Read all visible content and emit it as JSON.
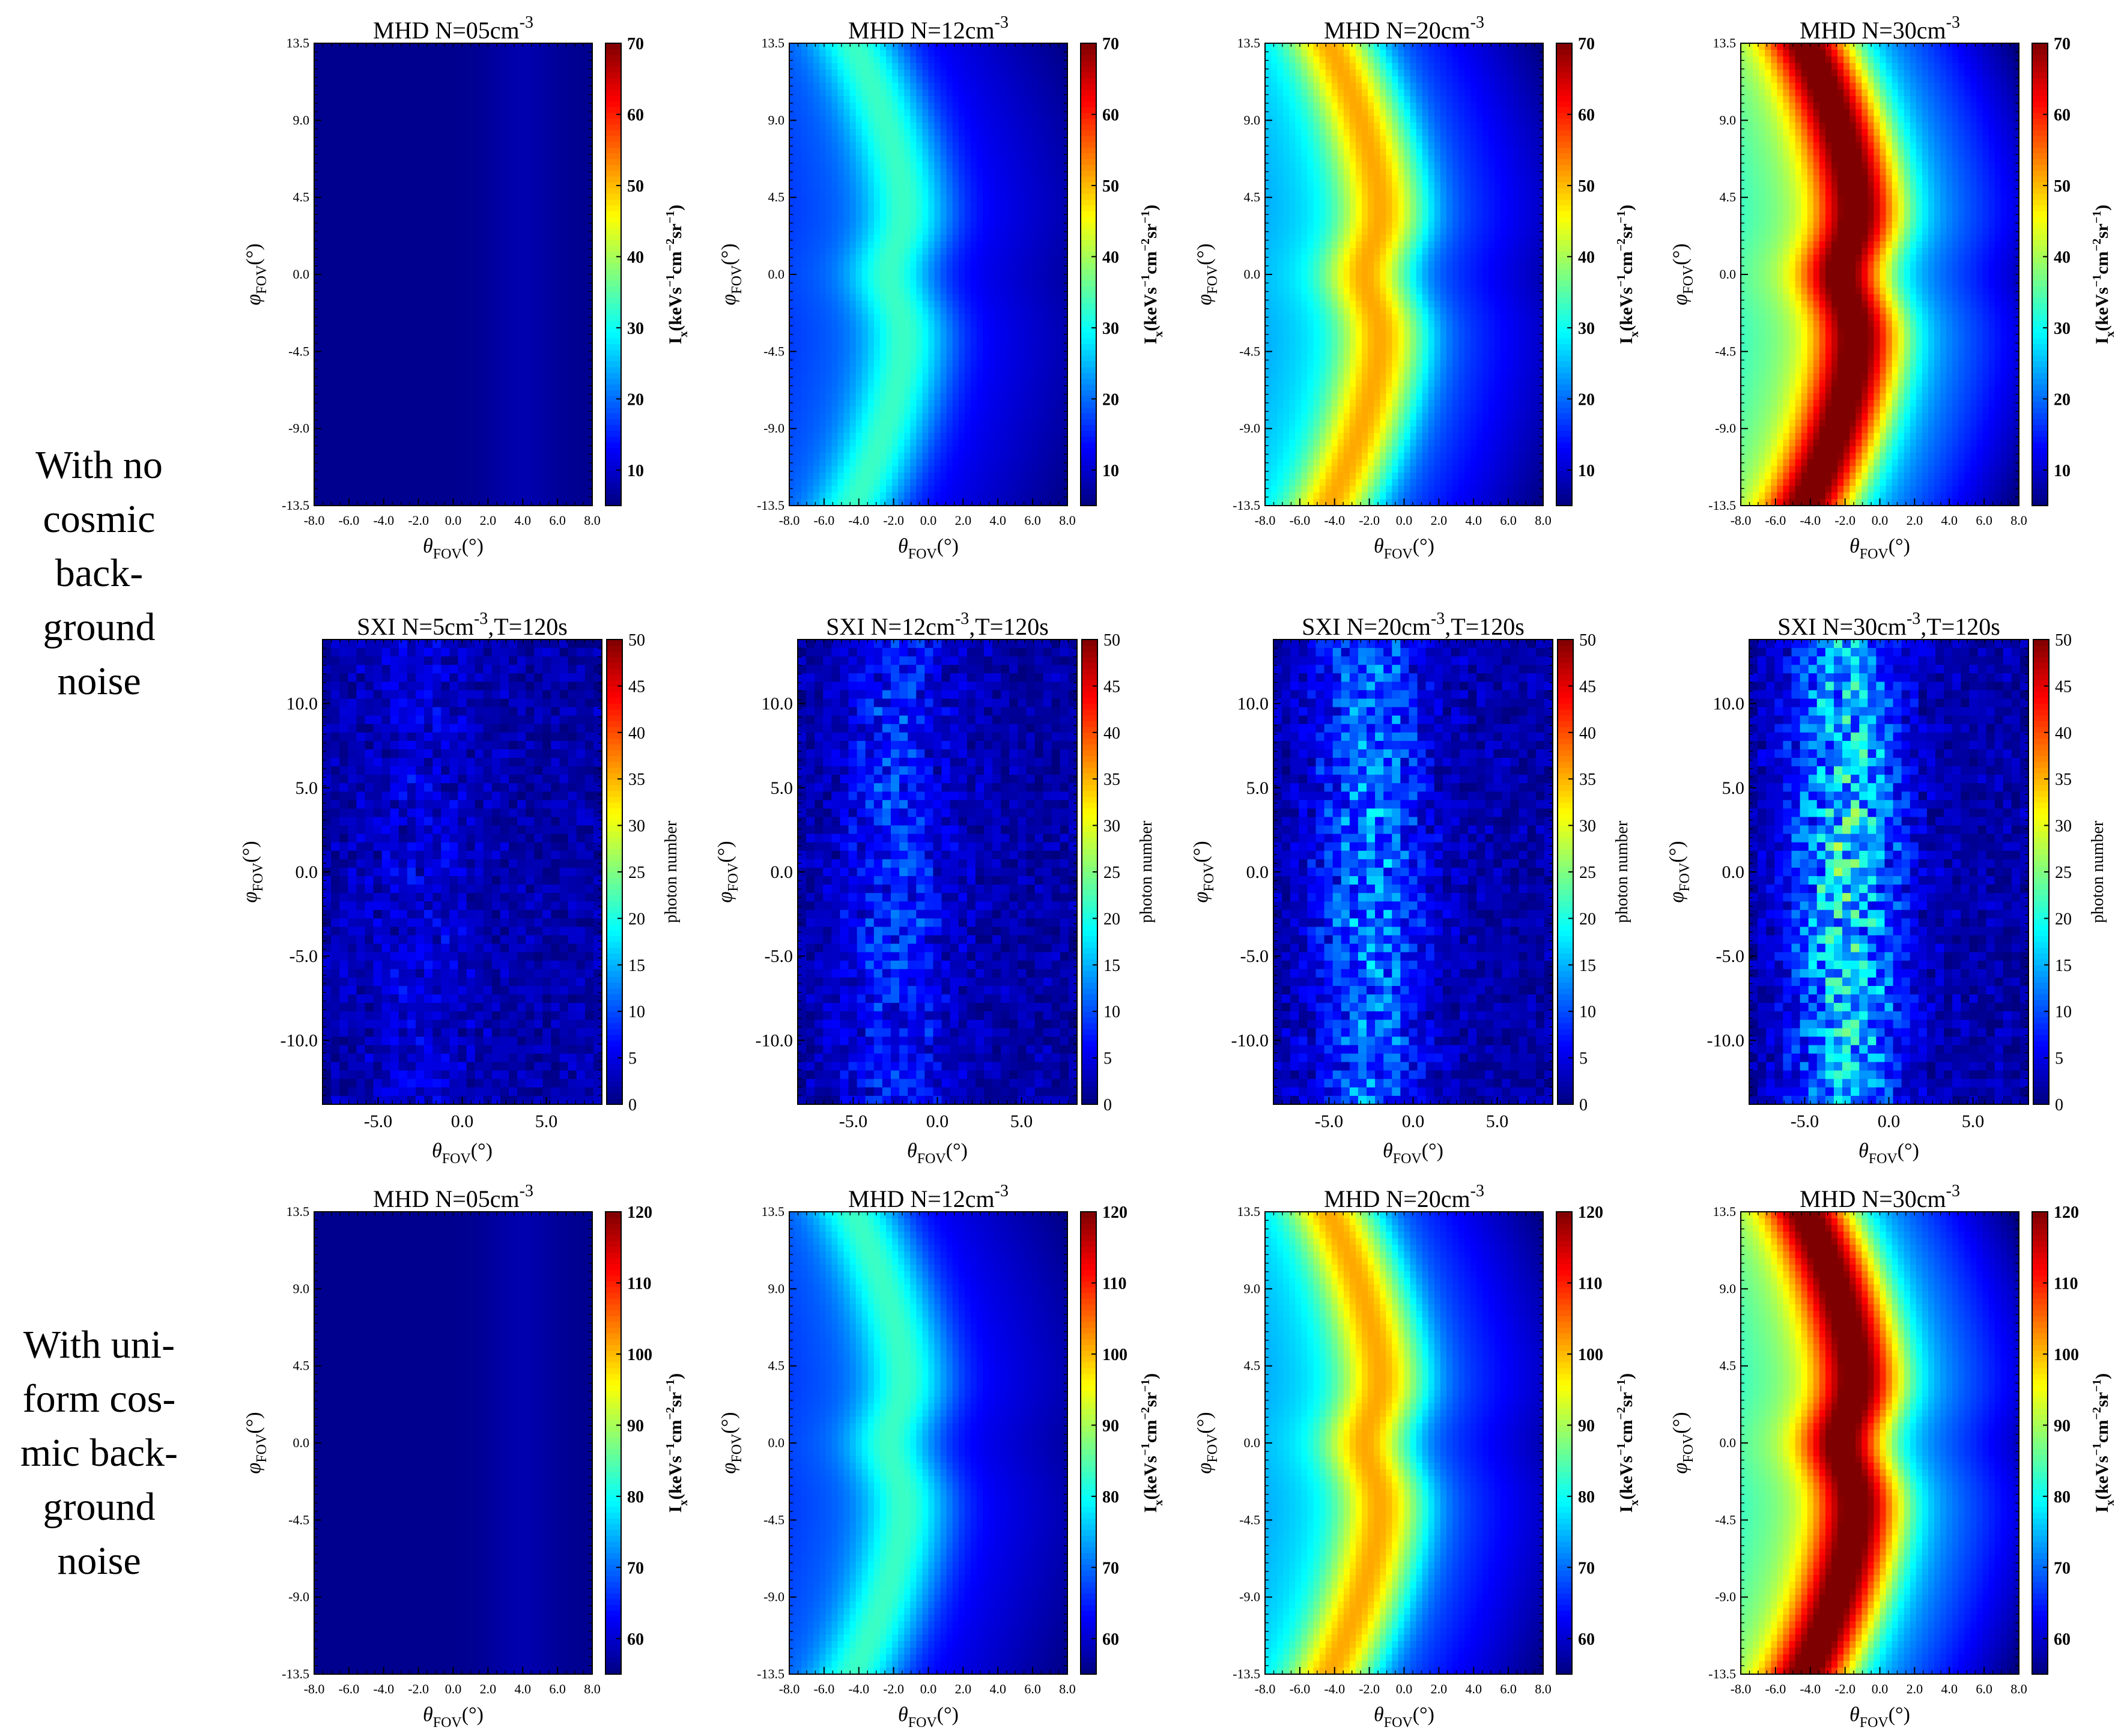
{
  "row_labels": [
    [
      "With no",
      "cosmic",
      "back-",
      "ground",
      "noise"
    ],
    [
      "With uni-",
      "form cos-",
      "mic back-",
      "ground",
      "noise"
    ]
  ],
  "colormap": [
    "#00007f",
    "#0000ff",
    "#007fff",
    "#00ffff",
    "#7fff7f",
    "#ffff00",
    "#ff7f00",
    "#ff0000",
    "#7f0000"
  ],
  "chart_data": [
    {
      "type": "heatmap",
      "title_main": "MHD  N=05cm",
      "title_sup": "-3",
      "title_tail": "",
      "xlabel_sym": "θ",
      "ylabel_sym": "φ",
      "axis_sub": "FOV",
      "axis_unit": "(°)",
      "cbar_label": "I",
      "cbar_sub": "x",
      "cbar_unit_a": "(keVs",
      "cbar_sup_a": "−1",
      "cbar_unit_b": "cm",
      "cbar_sup_b": "−2",
      "cbar_unit_c": "sr",
      "cbar_sup_c": "−1",
      "cbar_unit_d": ")",
      "xlim": [
        -8,
        8
      ],
      "ylim": [
        -13.5,
        13.5
      ],
      "xticks": [
        "-8.0",
        "-6.0",
        "-4.0",
        "-2.0",
        "0.0",
        "2.0",
        "4.0",
        "6.0",
        "8.0"
      ],
      "yticks": [
        "-13.5",
        "-9.0",
        "-4.5",
        "0.0",
        "4.5",
        "9.0",
        "13.5"
      ],
      "clim": [
        5,
        70
      ],
      "cticks": [
        "10",
        "20",
        "30",
        "40",
        "50",
        "60",
        "70"
      ],
      "model": {
        "density": 5,
        "kind": "smooth"
      }
    },
    {
      "type": "heatmap",
      "title_main": "MHD  N=12cm",
      "title_sup": "-3",
      "title_tail": "",
      "xlabel_sym": "θ",
      "ylabel_sym": "φ",
      "axis_sub": "FOV",
      "axis_unit": "(°)",
      "cbar_label": "I",
      "cbar_sub": "x",
      "cbar_unit_a": "(keVs",
      "cbar_sup_a": "−1",
      "cbar_unit_b": "cm",
      "cbar_sup_b": "−2",
      "cbar_unit_c": "sr",
      "cbar_sup_c": "−1",
      "cbar_unit_d": ")",
      "xlim": [
        -8,
        8
      ],
      "ylim": [
        -13.5,
        13.5
      ],
      "xticks": [
        "-8.0",
        "-6.0",
        "-4.0",
        "-2.0",
        "0.0",
        "2.0",
        "4.0",
        "6.0",
        "8.0"
      ],
      "yticks": [
        "-13.5",
        "-9.0",
        "-4.5",
        "0.0",
        "4.5",
        "9.0",
        "13.5"
      ],
      "clim": [
        5,
        70
      ],
      "cticks": [
        "10",
        "20",
        "30",
        "40",
        "50",
        "60",
        "70"
      ],
      "model": {
        "density": 12,
        "kind": "smooth"
      }
    },
    {
      "type": "heatmap",
      "title_main": "MHD  N=20cm",
      "title_sup": "-3",
      "title_tail": "",
      "xlabel_sym": "θ",
      "ylabel_sym": "φ",
      "axis_sub": "FOV",
      "axis_unit": "(°)",
      "cbar_label": "I",
      "cbar_sub": "x",
      "cbar_unit_a": "(keVs",
      "cbar_sup_a": "−1",
      "cbar_unit_b": "cm",
      "cbar_sup_b": "−2",
      "cbar_unit_c": "sr",
      "cbar_sup_c": "−1",
      "cbar_unit_d": ")",
      "xlim": [
        -8,
        8
      ],
      "ylim": [
        -13.5,
        13.5
      ],
      "xticks": [
        "-8.0",
        "-6.0",
        "-4.0",
        "-2.0",
        "0.0",
        "2.0",
        "4.0",
        "6.0",
        "8.0"
      ],
      "yticks": [
        "-13.5",
        "-9.0",
        "-4.5",
        "0.0",
        "4.5",
        "9.0",
        "13.5"
      ],
      "clim": [
        5,
        70
      ],
      "cticks": [
        "10",
        "20",
        "30",
        "40",
        "50",
        "60",
        "70"
      ],
      "model": {
        "density": 20,
        "kind": "smooth"
      }
    },
    {
      "type": "heatmap",
      "title_main": "MHD  N=30cm",
      "title_sup": "-3",
      "title_tail": "",
      "xlabel_sym": "θ",
      "ylabel_sym": "φ",
      "axis_sub": "FOV",
      "axis_unit": "(°)",
      "cbar_label": "I",
      "cbar_sub": "x",
      "cbar_unit_a": "(keVs",
      "cbar_sup_a": "−1",
      "cbar_unit_b": "cm",
      "cbar_sup_b": "−2",
      "cbar_unit_c": "sr",
      "cbar_sup_c": "−1",
      "cbar_unit_d": ")",
      "xlim": [
        -8,
        8
      ],
      "ylim": [
        -13.5,
        13.5
      ],
      "xticks": [
        "-8.0",
        "-6.0",
        "-4.0",
        "-2.0",
        "0.0",
        "2.0",
        "4.0",
        "6.0",
        "8.0"
      ],
      "yticks": [
        "-13.5",
        "-9.0",
        "-4.5",
        "0.0",
        "4.5",
        "9.0",
        "13.5"
      ],
      "clim": [
        5,
        70
      ],
      "cticks": [
        "10",
        "20",
        "30",
        "40",
        "50",
        "60",
        "70"
      ],
      "model": {
        "density": 30,
        "kind": "smooth"
      }
    },
    {
      "type": "heatmap",
      "title_main": "SXI   N=5cm",
      "title_sup": "-3",
      "title_tail": ",T=120s",
      "xlabel_sym": "θ",
      "ylabel_sym": "φ",
      "axis_sub": "FOV",
      "axis_unit": "(°)",
      "cbar_label": "photon number",
      "xlim": [
        -8.3,
        8.3
      ],
      "ylim": [
        -13.8,
        13.8
      ],
      "xticks": [
        "-5.0",
        "0.0",
        "5.0"
      ],
      "xtick_values": [
        -5,
        0,
        5
      ],
      "yticks": [
        "-10.0",
        "-5.0",
        "0.0",
        "5.0",
        "10.0"
      ],
      "ytick_values": [
        -10,
        -5,
        0,
        5,
        10
      ],
      "clim": [
        0,
        50
      ],
      "cticks": [
        "0",
        "5",
        "10",
        "15",
        "20",
        "25",
        "30",
        "35",
        "40",
        "45",
        "50"
      ],
      "model": {
        "density": 5,
        "kind": "counts"
      }
    },
    {
      "type": "heatmap",
      "title_main": "SXI   N=12cm",
      "title_sup": "-3",
      "title_tail": ",T=120s",
      "xlabel_sym": "θ",
      "ylabel_sym": "φ",
      "axis_sub": "FOV",
      "axis_unit": "(°)",
      "cbar_label": "photon number",
      "xlim": [
        -8.3,
        8.3
      ],
      "ylim": [
        -13.8,
        13.8
      ],
      "xticks": [
        "-5.0",
        "0.0",
        "5.0"
      ],
      "xtick_values": [
        -5,
        0,
        5
      ],
      "yticks": [
        "-10.0",
        "-5.0",
        "0.0",
        "5.0",
        "10.0"
      ],
      "ytick_values": [
        -10,
        -5,
        0,
        5,
        10
      ],
      "clim": [
        0,
        50
      ],
      "cticks": [
        "0",
        "5",
        "10",
        "15",
        "20",
        "25",
        "30",
        "35",
        "40",
        "45",
        "50"
      ],
      "model": {
        "density": 12,
        "kind": "counts"
      }
    },
    {
      "type": "heatmap",
      "title_main": "SXI   N=20cm",
      "title_sup": "-3",
      "title_tail": ",T=120s",
      "xlabel_sym": "θ",
      "ylabel_sym": "φ",
      "axis_sub": "FOV",
      "axis_unit": "(°)",
      "cbar_label": "photon number",
      "xlim": [
        -8.3,
        8.3
      ],
      "ylim": [
        -13.8,
        13.8
      ],
      "xticks": [
        "-5.0",
        "0.0",
        "5.0"
      ],
      "xtick_values": [
        -5,
        0,
        5
      ],
      "yticks": [
        "-10.0",
        "-5.0",
        "0.0",
        "5.0",
        "10.0"
      ],
      "ytick_values": [
        -10,
        -5,
        0,
        5,
        10
      ],
      "clim": [
        0,
        50
      ],
      "cticks": [
        "0",
        "5",
        "10",
        "15",
        "20",
        "25",
        "30",
        "35",
        "40",
        "45",
        "50"
      ],
      "model": {
        "density": 20,
        "kind": "counts"
      }
    },
    {
      "type": "heatmap",
      "title_main": "SXI   N=30cm",
      "title_sup": "-3",
      "title_tail": ",T=120s",
      "xlabel_sym": "θ",
      "ylabel_sym": "φ",
      "axis_sub": "FOV",
      "axis_unit": "(°)",
      "cbar_label": "photon number",
      "xlim": [
        -8.3,
        8.3
      ],
      "ylim": [
        -13.8,
        13.8
      ],
      "xticks": [
        "-5.0",
        "0.0",
        "5.0"
      ],
      "xtick_values": [
        -5,
        0,
        5
      ],
      "yticks": [
        "-10.0",
        "-5.0",
        "0.0",
        "5.0",
        "10.0"
      ],
      "ytick_values": [
        -10,
        -5,
        0,
        5,
        10
      ],
      "clim": [
        0,
        50
      ],
      "cticks": [
        "0",
        "5",
        "10",
        "15",
        "20",
        "25",
        "30",
        "35",
        "40",
        "45",
        "50"
      ],
      "model": {
        "density": 30,
        "kind": "counts"
      }
    },
    {
      "type": "heatmap",
      "title_main": "MHD  N=05cm",
      "title_sup": "-3",
      "title_tail": "",
      "xlabel_sym": "θ",
      "ylabel_sym": "φ",
      "axis_sub": "FOV",
      "axis_unit": "(°)",
      "cbar_label": "I",
      "cbar_sub": "x",
      "cbar_unit_a": "(keVs",
      "cbar_sup_a": "−1",
      "cbar_unit_b": "cm",
      "cbar_sup_b": "−2",
      "cbar_unit_c": "sr",
      "cbar_sup_c": "−1",
      "cbar_unit_d": ")",
      "xlim": [
        -8,
        8
      ],
      "ylim": [
        -13.5,
        13.5
      ],
      "xticks": [
        "-8.0",
        "-6.0",
        "-4.0",
        "-2.0",
        "0.0",
        "2.0",
        "4.0",
        "6.0",
        "8.0"
      ],
      "yticks": [
        "-13.5",
        "-9.0",
        "-4.5",
        "0.0",
        "4.5",
        "9.0",
        "13.5"
      ],
      "clim": [
        55,
        120
      ],
      "cticks": [
        "60",
        "70",
        "80",
        "90",
        "100",
        "110",
        "120"
      ],
      "model": {
        "density": 5,
        "kind": "smooth",
        "offset": 50
      }
    },
    {
      "type": "heatmap",
      "title_main": "MHD  N=12cm",
      "title_sup": "-3",
      "title_tail": "",
      "xlabel_sym": "θ",
      "ylabel_sym": "φ",
      "axis_sub": "FOV",
      "axis_unit": "(°)",
      "cbar_label": "I",
      "cbar_sub": "x",
      "cbar_unit_a": "(keVs",
      "cbar_sup_a": "−1",
      "cbar_unit_b": "cm",
      "cbar_sup_b": "−2",
      "cbar_unit_c": "sr",
      "cbar_sup_c": "−1",
      "cbar_unit_d": ")",
      "xlim": [
        -8,
        8
      ],
      "ylim": [
        -13.5,
        13.5
      ],
      "xticks": [
        "-8.0",
        "-6.0",
        "-4.0",
        "-2.0",
        "0.0",
        "2.0",
        "4.0",
        "6.0",
        "8.0"
      ],
      "yticks": [
        "-13.5",
        "-9.0",
        "-4.5",
        "0.0",
        "4.5",
        "9.0",
        "13.5"
      ],
      "clim": [
        55,
        120
      ],
      "cticks": [
        "60",
        "70",
        "80",
        "90",
        "100",
        "110",
        "120"
      ],
      "model": {
        "density": 12,
        "kind": "smooth",
        "offset": 50
      }
    },
    {
      "type": "heatmap",
      "title_main": "MHD  N=20cm",
      "title_sup": "-3",
      "title_tail": "",
      "xlabel_sym": "θ",
      "ylabel_sym": "φ",
      "axis_sub": "FOV",
      "axis_unit": "(°)",
      "cbar_label": "I",
      "cbar_sub": "x",
      "cbar_unit_a": "(keVs",
      "cbar_sup_a": "−1",
      "cbar_unit_b": "cm",
      "cbar_sup_b": "−2",
      "cbar_unit_c": "sr",
      "cbar_sup_c": "−1",
      "cbar_unit_d": ")",
      "xlim": [
        -8,
        8
      ],
      "ylim": [
        -13.5,
        13.5
      ],
      "xticks": [
        "-8.0",
        "-6.0",
        "-4.0",
        "-2.0",
        "0.0",
        "2.0",
        "4.0",
        "6.0",
        "8.0"
      ],
      "yticks": [
        "-13.5",
        "-9.0",
        "-4.5",
        "0.0",
        "4.5",
        "9.0",
        "13.5"
      ],
      "clim": [
        55,
        120
      ],
      "cticks": [
        "60",
        "70",
        "80",
        "90",
        "100",
        "110",
        "120"
      ],
      "model": {
        "density": 20,
        "kind": "smooth",
        "offset": 50
      }
    },
    {
      "type": "heatmap",
      "title_main": "MHD  N=30cm",
      "title_sup": "-3",
      "title_tail": "",
      "xlabel_sym": "θ",
      "ylabel_sym": "φ",
      "axis_sub": "FOV",
      "axis_unit": "(°)",
      "cbar_label": "I",
      "cbar_sub": "x",
      "cbar_unit_a": "(keVs",
      "cbar_sup_a": "−1",
      "cbar_unit_b": "cm",
      "cbar_sup_b": "−2",
      "cbar_unit_c": "sr",
      "cbar_sup_c": "−1",
      "cbar_unit_d": ")",
      "xlim": [
        -8,
        8
      ],
      "ylim": [
        -13.5,
        13.5
      ],
      "xticks": [
        "-8.0",
        "-6.0",
        "-4.0",
        "-2.0",
        "0.0",
        "2.0",
        "4.0",
        "6.0",
        "8.0"
      ],
      "yticks": [
        "-13.5",
        "-9.0",
        "-4.5",
        "0.0",
        "4.5",
        "9.0",
        "13.5"
      ],
      "clim": [
        55,
        120
      ],
      "cticks": [
        "60",
        "70",
        "80",
        "90",
        "100",
        "110",
        "120"
      ],
      "model": {
        "density": 30,
        "kind": "smooth",
        "offset": 50
      }
    }
  ]
}
